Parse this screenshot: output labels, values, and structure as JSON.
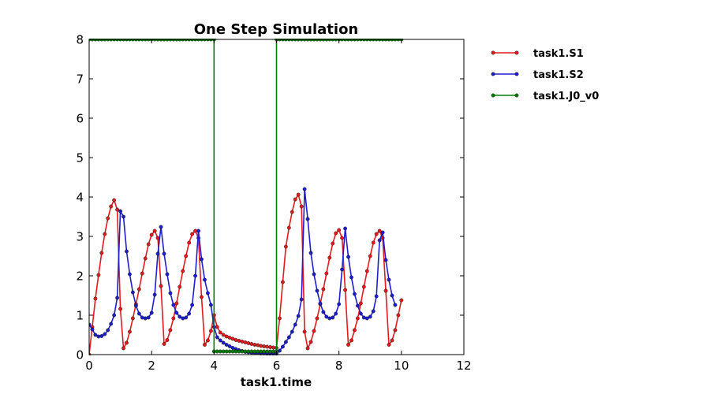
{
  "chart_data": {
    "type": "line",
    "title": "One Step Simulation",
    "xlabel": "task1.time",
    "ylabel": "",
    "xlim": [
      0,
      12
    ],
    "ylim": [
      0,
      8
    ],
    "xticks": [
      "0",
      "2",
      "4",
      "6",
      "8",
      "10",
      "12"
    ],
    "yticks": [
      "0",
      "1",
      "2",
      "3",
      "4",
      "5",
      "6",
      "7",
      "8"
    ],
    "grid": false,
    "legend_position": "outside-top-right",
    "series": [
      {
        "name": "task1.S1",
        "color": "#e41a1c",
        "points": [
          [
            0.0,
            0.0
          ],
          [
            0.1,
            0.7
          ],
          [
            0.2,
            1.42
          ],
          [
            0.3,
            2.02
          ],
          [
            0.4,
            2.58
          ],
          [
            0.5,
            3.06
          ],
          [
            0.6,
            3.46
          ],
          [
            0.7,
            3.76
          ],
          [
            0.8,
            3.92
          ],
          [
            0.9,
            3.68
          ],
          [
            1.0,
            1.16
          ],
          [
            1.1,
            0.16
          ],
          [
            1.2,
            0.3
          ],
          [
            1.3,
            0.58
          ],
          [
            1.4,
            0.92
          ],
          [
            1.5,
            1.28
          ],
          [
            1.6,
            1.66
          ],
          [
            1.7,
            2.06
          ],
          [
            1.8,
            2.44
          ],
          [
            1.9,
            2.8
          ],
          [
            2.0,
            3.04
          ],
          [
            2.1,
            3.14
          ],
          [
            2.2,
            2.96
          ],
          [
            2.3,
            1.74
          ],
          [
            2.4,
            0.27
          ],
          [
            2.5,
            0.37
          ],
          [
            2.6,
            0.62
          ],
          [
            2.7,
            0.92
          ],
          [
            2.8,
            1.3
          ],
          [
            2.9,
            1.72
          ],
          [
            3.0,
            2.12
          ],
          [
            3.1,
            2.5
          ],
          [
            3.2,
            2.84
          ],
          [
            3.3,
            3.06
          ],
          [
            3.4,
            3.14
          ],
          [
            3.5,
            2.96
          ],
          [
            3.6,
            1.46
          ],
          [
            3.7,
            0.25
          ],
          [
            3.8,
            0.36
          ],
          [
            3.9,
            0.6
          ],
          [
            4.0,
            1.0
          ],
          [
            4.1,
            0.7
          ],
          [
            4.2,
            0.56
          ],
          [
            4.3,
            0.5
          ],
          [
            4.4,
            0.46
          ],
          [
            4.5,
            0.43
          ],
          [
            4.6,
            0.4
          ],
          [
            4.7,
            0.37
          ],
          [
            4.8,
            0.35
          ],
          [
            4.9,
            0.33
          ],
          [
            5.0,
            0.31
          ],
          [
            5.1,
            0.29
          ],
          [
            5.2,
            0.27
          ],
          [
            5.3,
            0.25
          ],
          [
            5.4,
            0.24
          ],
          [
            5.5,
            0.22
          ],
          [
            5.6,
            0.21
          ],
          [
            5.7,
            0.2
          ],
          [
            5.8,
            0.19
          ],
          [
            5.9,
            0.18
          ],
          [
            6.0,
            0.17
          ],
          [
            6.1,
            0.92
          ],
          [
            6.2,
            1.84
          ],
          [
            6.3,
            2.74
          ],
          [
            6.4,
            3.22
          ],
          [
            6.5,
            3.62
          ],
          [
            6.6,
            3.94
          ],
          [
            6.7,
            4.06
          ],
          [
            6.8,
            3.76
          ],
          [
            6.9,
            0.58
          ],
          [
            7.0,
            0.16
          ],
          [
            7.1,
            0.32
          ],
          [
            7.2,
            0.6
          ],
          [
            7.3,
            0.92
          ],
          [
            7.4,
            1.28
          ],
          [
            7.5,
            1.66
          ],
          [
            7.6,
            2.06
          ],
          [
            7.7,
            2.46
          ],
          [
            7.8,
            2.82
          ],
          [
            7.9,
            3.08
          ],
          [
            8.0,
            3.16
          ],
          [
            8.1,
            2.96
          ],
          [
            8.2,
            1.64
          ],
          [
            8.3,
            0.25
          ],
          [
            8.4,
            0.36
          ],
          [
            8.5,
            0.62
          ],
          [
            8.6,
            0.92
          ],
          [
            8.7,
            1.3
          ],
          [
            8.8,
            1.72
          ],
          [
            8.9,
            2.12
          ],
          [
            9.0,
            2.5
          ],
          [
            9.1,
            2.84
          ],
          [
            9.2,
            3.06
          ],
          [
            9.3,
            3.14
          ],
          [
            9.4,
            2.96
          ],
          [
            9.5,
            1.62
          ],
          [
            9.6,
            0.25
          ],
          [
            9.7,
            0.36
          ],
          [
            9.8,
            0.62
          ],
          [
            9.9,
            1.0
          ],
          [
            10.0,
            1.38
          ]
        ]
      },
      {
        "name": "task1.S2",
        "color": "#1e1ecd",
        "points": [
          [
            0.0,
            0.76
          ],
          [
            0.1,
            0.64
          ],
          [
            0.2,
            0.5
          ],
          [
            0.3,
            0.46
          ],
          [
            0.4,
            0.47
          ],
          [
            0.5,
            0.52
          ],
          [
            0.6,
            0.62
          ],
          [
            0.7,
            0.78
          ],
          [
            0.8,
            1.0
          ],
          [
            0.9,
            1.44
          ],
          [
            1.0,
            3.64
          ],
          [
            1.1,
            3.5
          ],
          [
            1.2,
            2.62
          ],
          [
            1.3,
            2.04
          ],
          [
            1.4,
            1.58
          ],
          [
            1.5,
            1.24
          ],
          [
            1.6,
            1.04
          ],
          [
            1.7,
            0.94
          ],
          [
            1.8,
            0.92
          ],
          [
            1.9,
            0.94
          ],
          [
            2.0,
            1.06
          ],
          [
            2.1,
            1.52
          ],
          [
            2.2,
            2.56
          ],
          [
            2.3,
            3.24
          ],
          [
            2.4,
            2.56
          ],
          [
            2.5,
            2.04
          ],
          [
            2.6,
            1.56
          ],
          [
            2.7,
            1.26
          ],
          [
            2.8,
            1.06
          ],
          [
            2.9,
            0.96
          ],
          [
            3.0,
            0.92
          ],
          [
            3.1,
            0.94
          ],
          [
            3.2,
            1.04
          ],
          [
            3.3,
            1.26
          ],
          [
            3.4,
            2.0
          ],
          [
            3.5,
            3.14
          ],
          [
            3.6,
            2.42
          ],
          [
            3.7,
            1.9
          ],
          [
            3.8,
            1.56
          ],
          [
            3.9,
            1.26
          ],
          [
            4.0,
            0.7
          ],
          [
            4.1,
            0.44
          ],
          [
            4.2,
            0.36
          ],
          [
            4.3,
            0.3
          ],
          [
            4.4,
            0.25
          ],
          [
            4.5,
            0.21
          ],
          [
            4.6,
            0.17
          ],
          [
            4.7,
            0.14
          ],
          [
            4.8,
            0.11
          ],
          [
            4.9,
            0.09
          ],
          [
            5.0,
            0.07
          ],
          [
            5.1,
            0.06
          ],
          [
            5.2,
            0.05
          ],
          [
            5.3,
            0.04
          ],
          [
            5.4,
            0.04
          ],
          [
            5.5,
            0.03
          ],
          [
            5.6,
            0.03
          ],
          [
            5.7,
            0.02
          ],
          [
            5.8,
            0.02
          ],
          [
            5.9,
            0.02
          ],
          [
            6.0,
            0.02
          ],
          [
            6.1,
            0.1
          ],
          [
            6.2,
            0.2
          ],
          [
            6.3,
            0.32
          ],
          [
            6.4,
            0.44
          ],
          [
            6.5,
            0.58
          ],
          [
            6.6,
            0.76
          ],
          [
            6.7,
            0.98
          ],
          [
            6.8,
            1.4
          ],
          [
            6.9,
            4.2
          ],
          [
            7.0,
            3.44
          ],
          [
            7.1,
            2.58
          ],
          [
            7.2,
            2.04
          ],
          [
            7.3,
            1.62
          ],
          [
            7.4,
            1.3
          ],
          [
            7.5,
            1.08
          ],
          [
            7.6,
            0.96
          ],
          [
            7.7,
            0.92
          ],
          [
            7.8,
            0.94
          ],
          [
            7.9,
            1.04
          ],
          [
            8.0,
            1.28
          ],
          [
            8.1,
            2.16
          ],
          [
            8.2,
            3.2
          ],
          [
            8.3,
            2.48
          ],
          [
            8.4,
            1.96
          ],
          [
            8.5,
            1.54
          ],
          [
            8.6,
            1.24
          ],
          [
            8.7,
            1.04
          ],
          [
            8.8,
            0.94
          ],
          [
            8.9,
            0.92
          ],
          [
            9.0,
            0.96
          ],
          [
            9.1,
            1.1
          ],
          [
            9.2,
            1.48
          ],
          [
            9.3,
            2.9
          ],
          [
            9.4,
            3.1
          ],
          [
            9.5,
            2.4
          ],
          [
            9.6,
            1.9
          ],
          [
            9.7,
            1.5
          ],
          [
            9.8,
            1.26
          ]
        ]
      },
      {
        "name": "task1.J0_v0",
        "color": "#007f00",
        "points": [
          [
            0.0,
            8.0
          ],
          [
            0.1,
            8.0
          ],
          [
            0.2,
            8.0
          ],
          [
            0.3,
            8.0
          ],
          [
            0.4,
            8.0
          ],
          [
            0.5,
            8.0
          ],
          [
            0.6,
            8.0
          ],
          [
            0.7,
            8.0
          ],
          [
            0.8,
            8.0
          ],
          [
            0.9,
            8.0
          ],
          [
            1.0,
            8.0
          ],
          [
            1.1,
            8.0
          ],
          [
            1.2,
            8.0
          ],
          [
            1.3,
            8.0
          ],
          [
            1.4,
            8.0
          ],
          [
            1.5,
            8.0
          ],
          [
            1.6,
            8.0
          ],
          [
            1.7,
            8.0
          ],
          [
            1.8,
            8.0
          ],
          [
            1.9,
            8.0
          ],
          [
            2.0,
            8.0
          ],
          [
            2.1,
            8.0
          ],
          [
            2.2,
            8.0
          ],
          [
            2.3,
            8.0
          ],
          [
            2.4,
            8.0
          ],
          [
            2.5,
            8.0
          ],
          [
            2.6,
            8.0
          ],
          [
            2.7,
            8.0
          ],
          [
            2.8,
            8.0
          ],
          [
            2.9,
            8.0
          ],
          [
            3.0,
            8.0
          ],
          [
            3.1,
            8.0
          ],
          [
            3.2,
            8.0
          ],
          [
            3.3,
            8.0
          ],
          [
            3.4,
            8.0
          ],
          [
            3.5,
            8.0
          ],
          [
            3.6,
            8.0
          ],
          [
            3.7,
            8.0
          ],
          [
            3.8,
            8.0
          ],
          [
            3.9,
            8.0
          ],
          [
            4.0,
            8.0
          ],
          [
            4.0,
            0.08
          ],
          [
            4.1,
            0.08
          ],
          [
            4.2,
            0.08
          ],
          [
            4.3,
            0.08
          ],
          [
            4.4,
            0.08
          ],
          [
            4.5,
            0.08
          ],
          [
            4.6,
            0.08
          ],
          [
            4.7,
            0.08
          ],
          [
            4.8,
            0.08
          ],
          [
            4.9,
            0.08
          ],
          [
            5.0,
            0.08
          ],
          [
            5.1,
            0.08
          ],
          [
            5.2,
            0.08
          ],
          [
            5.3,
            0.08
          ],
          [
            5.4,
            0.08
          ],
          [
            5.5,
            0.08
          ],
          [
            5.6,
            0.08
          ],
          [
            5.7,
            0.08
          ],
          [
            5.8,
            0.08
          ],
          [
            5.9,
            0.08
          ],
          [
            6.0,
            0.08
          ],
          [
            6.0,
            8.0
          ],
          [
            6.1,
            8.0
          ],
          [
            6.2,
            8.0
          ],
          [
            6.3,
            8.0
          ],
          [
            6.4,
            8.0
          ],
          [
            6.5,
            8.0
          ],
          [
            6.6,
            8.0
          ],
          [
            6.7,
            8.0
          ],
          [
            6.8,
            8.0
          ],
          [
            6.9,
            8.0
          ],
          [
            7.0,
            8.0
          ],
          [
            7.1,
            8.0
          ],
          [
            7.2,
            8.0
          ],
          [
            7.3,
            8.0
          ],
          [
            7.4,
            8.0
          ],
          [
            7.5,
            8.0
          ],
          [
            7.6,
            8.0
          ],
          [
            7.7,
            8.0
          ],
          [
            7.8,
            8.0
          ],
          [
            7.9,
            8.0
          ],
          [
            8.0,
            8.0
          ],
          [
            8.1,
            8.0
          ],
          [
            8.2,
            8.0
          ],
          [
            8.3,
            8.0
          ],
          [
            8.4,
            8.0
          ],
          [
            8.5,
            8.0
          ],
          [
            8.6,
            8.0
          ],
          [
            8.7,
            8.0
          ],
          [
            8.8,
            8.0
          ],
          [
            8.9,
            8.0
          ],
          [
            9.0,
            8.0
          ],
          [
            9.1,
            8.0
          ],
          [
            9.2,
            8.0
          ],
          [
            9.3,
            8.0
          ],
          [
            9.4,
            8.0
          ],
          [
            9.5,
            8.0
          ],
          [
            9.6,
            8.0
          ],
          [
            9.7,
            8.0
          ],
          [
            9.8,
            8.0
          ],
          [
            9.9,
            8.0
          ],
          [
            10.0,
            8.0
          ]
        ]
      }
    ]
  }
}
